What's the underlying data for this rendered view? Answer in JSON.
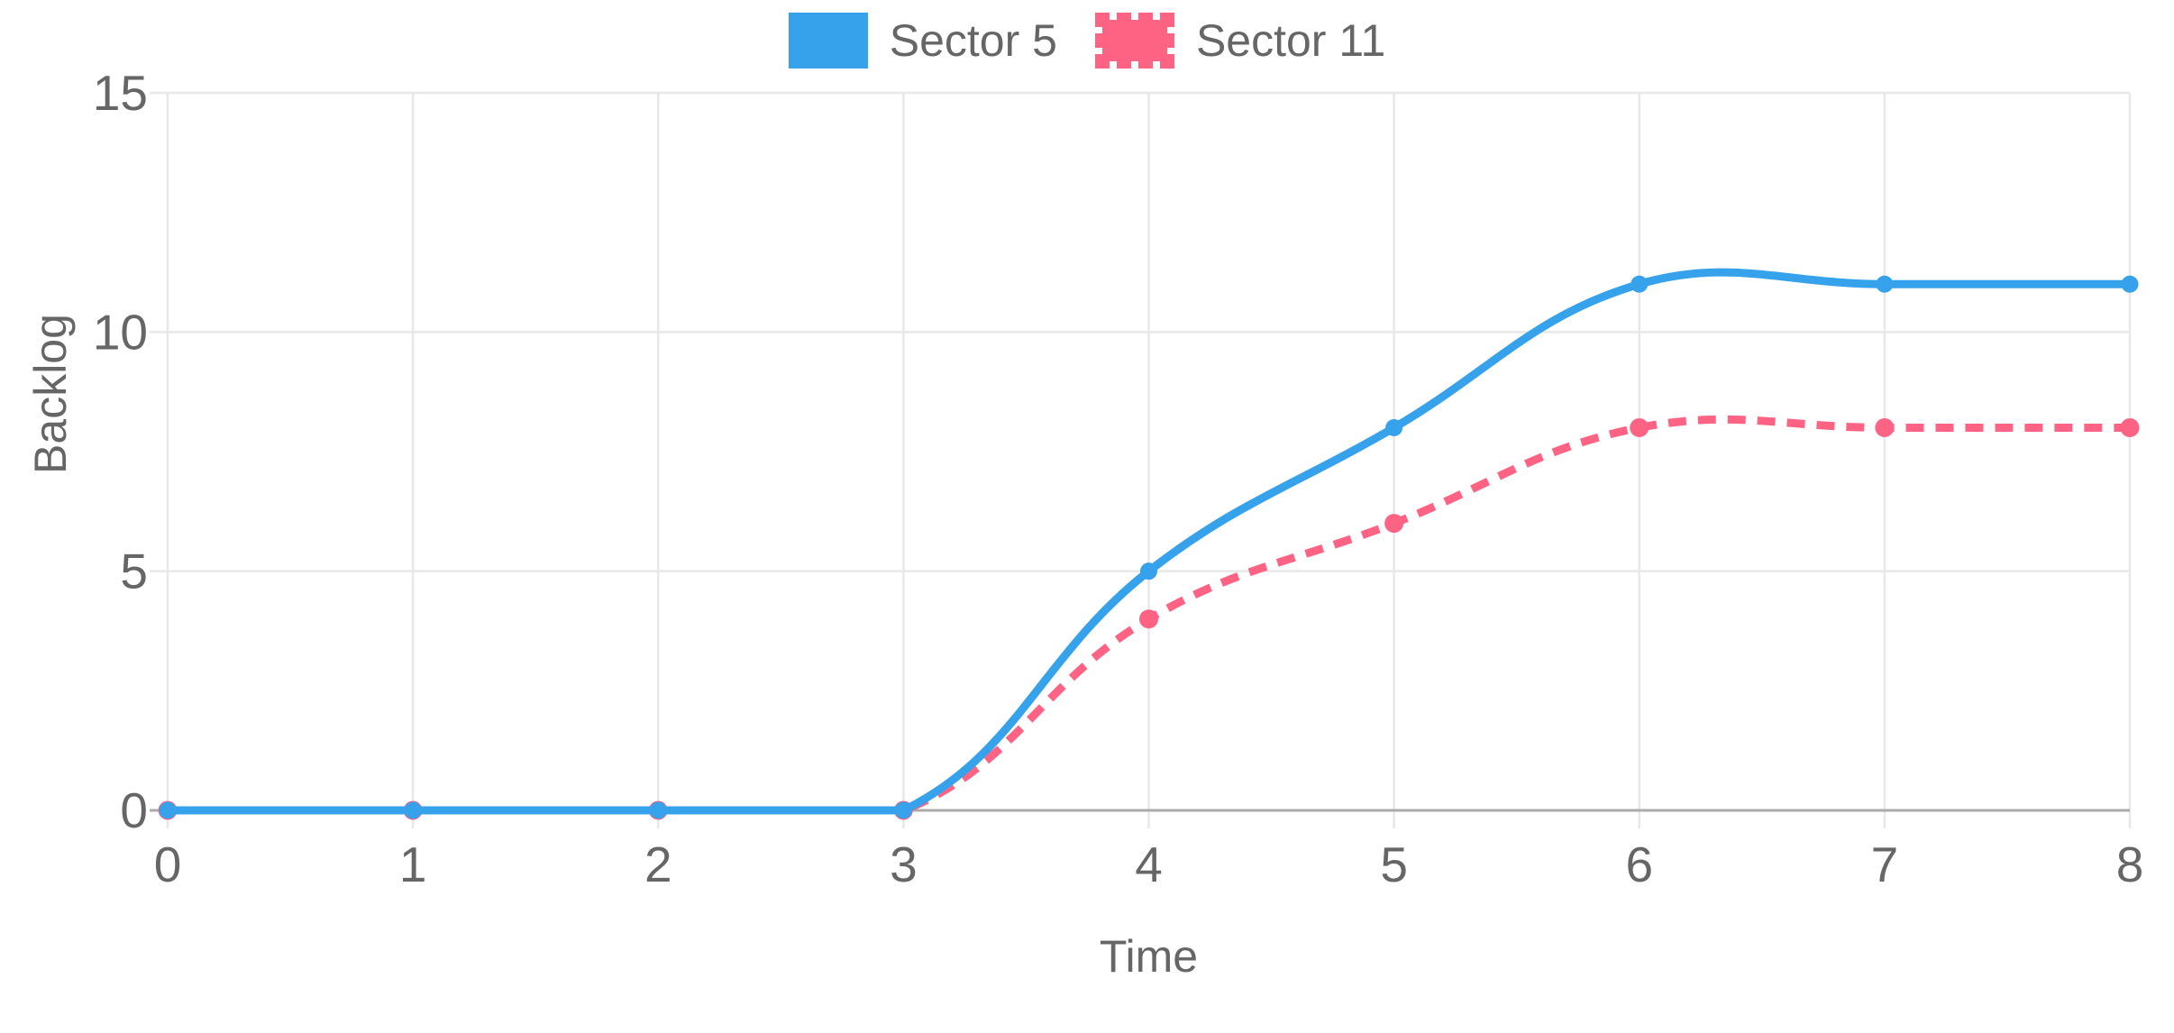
{
  "legend": {
    "items": [
      {
        "label": "Sector 5",
        "color": "#36A2EB",
        "style": "solid"
      },
      {
        "label": "Sector 11",
        "color": "#FF6384",
        "style": "dashed"
      }
    ]
  },
  "chart_data": {
    "type": "line",
    "x": [
      0,
      1,
      2,
      3,
      4,
      5,
      6,
      7,
      8
    ],
    "xticks": [
      0,
      1,
      2,
      3,
      4,
      5,
      6,
      7,
      8
    ],
    "yticks": [
      0,
      5,
      10,
      15
    ],
    "xlim": [
      0,
      8
    ],
    "ylim": [
      0,
      15
    ],
    "xlabel": "Time",
    "ylabel": "Backlog",
    "title": "",
    "grid": true,
    "legend_position": "top",
    "curve": "bezier-tension-0.4-capped",
    "series": [
      {
        "name": "Sector 5",
        "values": [
          0,
          0,
          0,
          0,
          5,
          8,
          11,
          11,
          11
        ],
        "color": "#36A2EB",
        "line_style": "solid",
        "line_width": 9,
        "point_radius": 9.5
      },
      {
        "name": "Sector 11",
        "values": [
          0,
          0,
          0,
          0,
          4,
          6,
          8,
          8,
          8
        ],
        "color": "#FF6384",
        "line_style": "dashed",
        "dash": [
          20,
          13
        ],
        "line_width": 9,
        "point_radius": 10.5
      }
    ]
  },
  "colors": {
    "grid": "#E8E8E8",
    "axis_line": "#ABABAB",
    "tick_text": "#666666",
    "background": "#FFFFFF"
  }
}
